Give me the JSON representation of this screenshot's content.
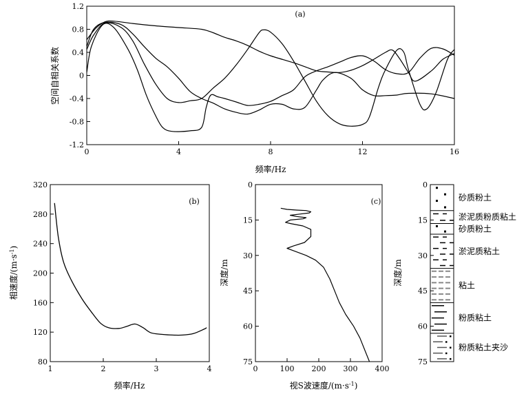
{
  "chart_data": [
    {
      "panel": "(a)",
      "type": "line",
      "xlabel": "频率/Hz",
      "ylabel": "空间自相关系数",
      "xlim": [
        0,
        16
      ],
      "ylim": [
        -1.2,
        1.2
      ],
      "x_ticks": [
        "0",
        "4",
        "8",
        "12",
        "16"
      ],
      "y_ticks": [
        "1.2",
        "0.8",
        "0.4",
        "0",
        "-0.4",
        "-0.8",
        "-1.2"
      ],
      "series": [
        {
          "values": [
            [
              0,
              0.62
            ],
            [
              0.4,
              0.82
            ],
            [
              0.8,
              0.93
            ],
            [
              1.2,
              0.94
            ],
            [
              2,
              0.9
            ],
            [
              3,
              0.86
            ],
            [
              4,
              0.83
            ],
            [
              5,
              0.8
            ],
            [
              5.5,
              0.74
            ],
            [
              6,
              0.66
            ],
            [
              6.5,
              0.6
            ],
            [
              7,
              0.52
            ],
            [
              7.5,
              0.42
            ],
            [
              8,
              0.34
            ],
            [
              9,
              0.22
            ],
            [
              9.5,
              0.15
            ],
            [
              10,
              0.08
            ],
            [
              10.5,
              0.06
            ],
            [
              11,
              0.05
            ],
            [
              11.5,
              0.09
            ],
            [
              12,
              0.17
            ],
            [
              12.5,
              0.28
            ],
            [
              13,
              0.4
            ],
            [
              13.3,
              0.44
            ],
            [
              13.6,
              0.3
            ],
            [
              14,
              0.05
            ],
            [
              14.3,
              -0.1
            ],
            [
              15,
              0.08
            ],
            [
              15.5,
              0.28
            ],
            [
              16,
              0.38
            ]
          ]
        },
        {
          "values": [
            [
              0,
              0.45
            ],
            [
              0.3,
              0.7
            ],
            [
              0.8,
              0.91
            ],
            [
              1.5,
              0.83
            ],
            [
              2,
              0.6
            ],
            [
              2.5,
              0.2
            ],
            [
              3,
              -0.15
            ],
            [
              3.5,
              -0.4
            ],
            [
              4,
              -0.47
            ],
            [
              4.5,
              -0.44
            ],
            [
              5,
              -0.4
            ],
            [
              5.5,
              -0.22
            ],
            [
              6,
              -0.05
            ],
            [
              6.5,
              0.18
            ],
            [
              7,
              0.45
            ],
            [
              7.5,
              0.74
            ],
            [
              7.7,
              0.79
            ],
            [
              8,
              0.75
            ],
            [
              8.5,
              0.55
            ],
            [
              9,
              0.25
            ],
            [
              9.5,
              -0.1
            ],
            [
              10,
              -0.45
            ],
            [
              10.5,
              -0.7
            ],
            [
              11,
              -0.84
            ],
            [
              11.5,
              -0.88
            ],
            [
              12,
              -0.85
            ],
            [
              12.3,
              -0.72
            ],
            [
              12.7,
              -0.2
            ],
            [
              13,
              0.1
            ],
            [
              13.5,
              0.44
            ],
            [
              13.8,
              0.4
            ],
            [
              14,
              0.1
            ],
            [
              14.5,
              -0.5
            ],
            [
              14.8,
              -0.58
            ],
            [
              15.2,
              -0.3
            ],
            [
              15.7,
              0.28
            ],
            [
              16,
              0.45
            ]
          ]
        },
        {
          "values": [
            [
              0,
              0.05
            ],
            [
              0.2,
              0.5
            ],
            [
              0.7,
              0.88
            ],
            [
              1.2,
              0.82
            ],
            [
              1.8,
              0.45
            ],
            [
              2.2,
              0.1
            ],
            [
              2.6,
              -0.35
            ],
            [
              3,
              -0.7
            ],
            [
              3.3,
              -0.9
            ],
            [
              3.7,
              -0.97
            ],
            [
              4.5,
              -0.96
            ],
            [
              5,
              -0.9
            ],
            [
              5.2,
              -0.55
            ],
            [
              5.4,
              -0.34
            ],
            [
              5.7,
              -0.37
            ],
            [
              6,
              -0.4
            ],
            [
              6.5,
              -0.46
            ],
            [
              7,
              -0.52
            ],
            [
              7.5,
              -0.5
            ],
            [
              8,
              -0.45
            ],
            [
              8.5,
              -0.35
            ],
            [
              9,
              -0.25
            ],
            [
              9.5,
              -0.02
            ],
            [
              10,
              0.08
            ],
            [
              10.5,
              0.15
            ],
            [
              11,
              0.23
            ],
            [
              11.5,
              0.31
            ],
            [
              12,
              0.34
            ],
            [
              12.5,
              0.25
            ],
            [
              13,
              0.1
            ],
            [
              13.5,
              0.03
            ],
            [
              14,
              0.05
            ],
            [
              14.5,
              0.3
            ],
            [
              15,
              0.47
            ],
            [
              15.5,
              0.46
            ],
            [
              16,
              0.35
            ]
          ]
        },
        {
          "values": [
            [
              0,
              0.5
            ],
            [
              0.3,
              0.8
            ],
            [
              0.8,
              0.92
            ],
            [
              1.5,
              0.88
            ],
            [
              2,
              0.72
            ],
            [
              2.5,
              0.5
            ],
            [
              3,
              0.3
            ],
            [
              3.5,
              0.15
            ],
            [
              4,
              -0.05
            ],
            [
              4.5,
              -0.28
            ],
            [
              5,
              -0.4
            ],
            [
              5.5,
              -0.48
            ],
            [
              6,
              -0.58
            ],
            [
              6.5,
              -0.64
            ],
            [
              7,
              -0.67
            ],
            [
              7.5,
              -0.6
            ],
            [
              8,
              -0.5
            ],
            [
              8.5,
              -0.5
            ],
            [
              9,
              -0.58
            ],
            [
              9.5,
              -0.55
            ],
            [
              10,
              -0.25
            ],
            [
              10.3,
              -0.07
            ],
            [
              10.8,
              0.05
            ],
            [
              11.5,
              -0.05
            ],
            [
              12,
              -0.25
            ],
            [
              12.5,
              -0.35
            ],
            [
              13,
              -0.35
            ],
            [
              13.5,
              -0.34
            ],
            [
              14,
              -0.31
            ],
            [
              15,
              -0.32
            ],
            [
              16,
              -0.4
            ]
          ]
        }
      ]
    },
    {
      "panel": "(b)",
      "type": "line",
      "xlabel": "频率/Hz",
      "ylabel": "相速度/(m·s",
      "ylabel_sup": "-1",
      "ylabel_tail": ")",
      "xlim": [
        1,
        4
      ],
      "ylim": [
        80,
        320
      ],
      "x_ticks": [
        "1",
        "2",
        "3",
        "4"
      ],
      "y_ticks": [
        "320",
        "280",
        "240",
        "200",
        "160",
        "120",
        "80"
      ],
      "series": [
        {
          "values": [
            [
              1.08,
              295
            ],
            [
              1.15,
              250
            ],
            [
              1.25,
              215
            ],
            [
              1.4,
              190
            ],
            [
              1.6,
              165
            ],
            [
              1.8,
              145
            ],
            [
              1.95,
              132
            ],
            [
              2.1,
              126
            ],
            [
              2.3,
              125
            ],
            [
              2.45,
              128
            ],
            [
              2.6,
              131
            ],
            [
              2.75,
              126
            ],
            [
              2.9,
              119
            ],
            [
              3.1,
              117
            ],
            [
              3.3,
              116
            ],
            [
              3.5,
              116
            ],
            [
              3.7,
              118
            ],
            [
              3.9,
              124
            ],
            [
              3.95,
              126
            ]
          ]
        }
      ]
    },
    {
      "panel": "(c)",
      "type": "line",
      "xlabel": "视S波速度/(m·s",
      "xlabel_sup": "-1",
      "xlabel_tail": ")",
      "ylabel": "深度/m",
      "xlim": [
        0,
        400
      ],
      "ylim": [
        0,
        75
      ],
      "y_inverted": true,
      "x_ticks": [
        "0",
        "100",
        "200",
        "300",
        "400"
      ],
      "y_ticks": [
        "0",
        "15",
        "30",
        "45",
        "60",
        "75"
      ],
      "series": [
        {
          "values": [
            [
              80,
              10
            ],
            [
              100,
              10.5
            ],
            [
              130,
              10.8
            ],
            [
              160,
              11
            ],
            [
              175,
              11.5
            ],
            [
              170,
              12
            ],
            [
              140,
              12.5
            ],
            [
              110,
              13
            ],
            [
              130,
              13.5
            ],
            [
              160,
              14
            ],
            [
              150,
              14.5
            ],
            [
              110,
              15
            ],
            [
              95,
              16
            ],
            [
              110,
              16.5
            ],
            [
              150,
              17.5
            ],
            [
              175,
              19
            ],
            [
              175,
              22
            ],
            [
              155,
              24.5
            ],
            [
              120,
              26
            ],
            [
              100,
              27
            ],
            [
              120,
              28
            ],
            [
              160,
              30
            ],
            [
              190,
              32
            ],
            [
              215,
              35
            ],
            [
              235,
              40
            ],
            [
              250,
              45
            ],
            [
              265,
              50
            ],
            [
              285,
              55
            ],
            [
              310,
              60
            ],
            [
              330,
              65
            ],
            [
              345,
              70
            ],
            [
              360,
              75
            ]
          ]
        }
      ]
    },
    {
      "panel": "strata",
      "type": "column",
      "ylabel": "深度/m",
      "ylim": [
        0,
        75
      ],
      "y_ticks": [
        "0",
        "15",
        "30",
        "45",
        "60",
        "75"
      ],
      "layers": [
        {
          "name": "砂质粉土",
          "top": 0,
          "bottom": 11,
          "pattern": "dots"
        },
        {
          "name": "淤泥质粉质粘土",
          "top": 11,
          "bottom": 16.5,
          "pattern": "dashes"
        },
        {
          "name": "砂质粉土",
          "top": 16.5,
          "bottom": 21,
          "pattern": "dots"
        },
        {
          "name": "淤泥质粘土",
          "top": 21,
          "bottom": 35.5,
          "pattern": "dashes"
        },
        {
          "name": "粘土",
          "top": 35.5,
          "bottom": 50,
          "pattern": "clay"
        },
        {
          "name": "粉质粘土",
          "top": 50,
          "bottom": 63,
          "pattern": "lines"
        },
        {
          "name": "粉质粘土夹沙",
          "top": 63,
          "bottom": 75,
          "pattern": "mixed"
        }
      ]
    }
  ]
}
